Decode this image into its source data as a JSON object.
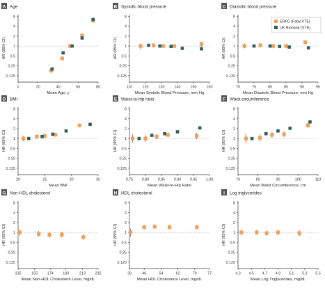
{
  "legend": {
    "items": [
      {
        "label": "ERFC (Fatal VTE)",
        "color": "#f0a05a"
      },
      {
        "label": "UK Biobank (VTE)",
        "color": "#2e5f5c"
      }
    ]
  },
  "colors": {
    "erfc": "#f0a05a",
    "ukb": "#2e5f5c",
    "axis": "#333333",
    "refline": "#999999"
  },
  "y_axis": {
    "label": "HR (95% CI)",
    "ticks": [
      0.125,
      0.25,
      0.5,
      1,
      2,
      4,
      8
    ],
    "tick_labels": [
      "0.125",
      "0.25",
      "0.5",
      "1",
      "2",
      "4",
      "8"
    ]
  },
  "chart_data": [
    {
      "type": "scatter",
      "letter": "A",
      "title": "Age",
      "xlabel": "Mean Age, y",
      "ylabel": "HR (95% CI)",
      "xlim": [
        0,
        80
      ],
      "xticks": [
        0,
        20,
        40,
        60,
        80
      ],
      "xtick_labels": [
        "0",
        "20",
        "40",
        "60",
        "80"
      ],
      "ylim": [
        0.08,
        9
      ],
      "yscale": "log",
      "series": [
        {
          "name": "ERFC (Fatal VTE)",
          "points": [
            {
              "x": 33,
              "y": 0.18,
              "lo": 0.15,
              "hi": 0.21
            },
            {
              "x": 44,
              "y": 0.42,
              "lo": 0.39,
              "hi": 0.46
            },
            {
              "x": 52,
              "y": 1.0,
              "lo": 1.0,
              "hi": 1.0
            },
            {
              "x": 64,
              "y": 2.1,
              "lo": 1.95,
              "hi": 2.25
            },
            {
              "x": 75,
              "y": 5.9,
              "lo": 5.2,
              "hi": 6.7
            }
          ]
        },
        {
          "name": "UK Biobank (VTE)",
          "points": [
            {
              "x": 34,
              "y": 0.2,
              "lo": 0.18,
              "hi": 0.22
            },
            {
              "x": 45,
              "y": 0.62,
              "lo": 0.6,
              "hi": 0.64
            },
            {
              "x": 54,
              "y": 1.0,
              "lo": 1.0,
              "hi": 1.0
            },
            {
              "x": 64,
              "y": 1.75,
              "lo": 1.7,
              "hi": 1.8
            },
            {
              "x": 75,
              "y": 6.4,
              "lo": 6.2,
              "hi": 6.6
            }
          ]
        }
      ]
    },
    {
      "type": "scatter",
      "letter": "B",
      "title": "Systolic blood pressure",
      "xlabel": "Mean Systolic Blood Pressure, mm Hg",
      "ylabel": "HR (95% CI)",
      "xlim": [
        110,
        160
      ],
      "xticks": [
        110,
        120,
        130,
        140,
        150,
        160
      ],
      "xtick_labels": [
        "110",
        "120",
        "130",
        "140",
        "150",
        "160"
      ],
      "ylim": [
        0.08,
        9
      ],
      "yscale": "log",
      "series": [
        {
          "name": "ERFC (Fatal VTE)",
          "points": [
            {
              "x": 117,
              "y": 1.0,
              "lo": 0.8,
              "hi": 1.2
            },
            {
              "x": 125,
              "y": 1.05,
              "lo": 0.9,
              "hi": 1.2
            },
            {
              "x": 131,
              "y": 1.0,
              "lo": 0.88,
              "hi": 1.15
            },
            {
              "x": 138,
              "y": 1.0,
              "lo": 1.0,
              "hi": 1.0
            },
            {
              "x": 155,
              "y": 1.15,
              "lo": 0.95,
              "hi": 1.35
            }
          ]
        },
        {
          "name": "UK Biobank (VTE)",
          "points": [
            {
              "x": 122,
              "y": 1.05,
              "lo": 1.0,
              "hi": 1.1
            },
            {
              "x": 129,
              "y": 1.0,
              "lo": 0.96,
              "hi": 1.04
            },
            {
              "x": 136,
              "y": 0.97,
              "lo": 0.93,
              "hi": 1.01
            },
            {
              "x": 143,
              "y": 0.85,
              "lo": 0.81,
              "hi": 0.89
            },
            {
              "x": 155,
              "y": 0.82,
              "lo": 0.78,
              "hi": 0.86
            }
          ]
        }
      ]
    },
    {
      "type": "scatter",
      "letter": "C",
      "title": "Diastolic blood pressure",
      "xlabel": "Mean Diastolic Blood Pressure, mm Hg",
      "ylabel": "HR (95% CI)",
      "xlim": [
        70,
        95
      ],
      "xticks": [
        70,
        75,
        80,
        85,
        90,
        95
      ],
      "xtick_labels": [
        "70",
        "75",
        "80",
        "85",
        "90",
        "95"
      ],
      "ylim": [
        0.08,
        9
      ],
      "yscale": "log",
      "series": [
        {
          "name": "ERFC (Fatal VTE)",
          "points": [
            {
              "x": 72,
              "y": 1.0,
              "lo": 0.85,
              "hi": 1.2
            },
            {
              "x": 77,
              "y": 1.05,
              "lo": 0.9,
              "hi": 1.2
            },
            {
              "x": 81,
              "y": 1.0,
              "lo": 0.85,
              "hi": 1.15
            },
            {
              "x": 85,
              "y": 1.0,
              "lo": 1.0,
              "hi": 1.0
            },
            {
              "x": 91,
              "y": 1.3,
              "lo": 1.15,
              "hi": 1.45
            }
          ]
        },
        {
          "name": "UK Biobank (VTE)",
          "points": [
            {
              "x": 75,
              "y": 1.0,
              "lo": 0.97,
              "hi": 1.03
            },
            {
              "x": 80,
              "y": 1.0,
              "lo": 0.97,
              "hi": 1.03
            },
            {
              "x": 83,
              "y": 0.97,
              "lo": 0.93,
              "hi": 1.01
            },
            {
              "x": 86,
              "y": 0.93,
              "lo": 0.9,
              "hi": 0.96
            },
            {
              "x": 92,
              "y": 0.88,
              "lo": 0.84,
              "hi": 0.92
            }
          ]
        }
      ]
    },
    {
      "type": "scatter",
      "letter": "D",
      "title": "BMI",
      "xlabel": "Mean BMI",
      "ylabel": "HR (95% CI)",
      "xlim": [
        20,
        35
      ],
      "xticks": [
        20,
        25,
        30,
        35
      ],
      "xtick_labels": [
        "20",
        "25",
        "30",
        "35"
      ],
      "ylim": [
        0.08,
        9
      ],
      "yscale": "log",
      "series": [
        {
          "name": "ERFC (Fatal VTE)",
          "points": [
            {
              "x": 21,
              "y": 1.0,
              "lo": 0.82,
              "hi": 1.2
            },
            {
              "x": 23.5,
              "y": 1.15,
              "lo": 1.0,
              "hi": 1.3
            },
            {
              "x": 25,
              "y": 1.2,
              "lo": 1.05,
              "hi": 1.35
            },
            {
              "x": 27,
              "y": 1.3,
              "lo": 1.15,
              "hi": 1.45
            },
            {
              "x": 31.5,
              "y": 2.5,
              "lo": 2.3,
              "hi": 2.7
            }
          ]
        },
        {
          "name": "UK Biobank (VTE)",
          "points": [
            {
              "x": 22,
              "y": 1.0,
              "lo": 0.97,
              "hi": 1.03
            },
            {
              "x": 24.5,
              "y": 1.15,
              "lo": 1.1,
              "hi": 1.2
            },
            {
              "x": 26.5,
              "y": 1.35,
              "lo": 1.3,
              "hi": 1.4
            },
            {
              "x": 29,
              "y": 1.7,
              "lo": 1.65,
              "hi": 1.75
            },
            {
              "x": 33.5,
              "y": 2.7,
              "lo": 2.6,
              "hi": 2.8
            }
          ]
        }
      ]
    },
    {
      "type": "scatter",
      "letter": "E",
      "title": "Waist-to-hip ratio",
      "xlabel": "Mean Waist-to-Hip Ratio",
      "ylabel": "HR (95% CI)",
      "xlim": [
        0.75,
        1.0
      ],
      "xticks": [
        0.75,
        0.8,
        0.85,
        0.9,
        0.95,
        1.0
      ],
      "xtick_labels": [
        "0.75",
        "0.80",
        "0.85",
        "0.90",
        "0.95",
        "1.00"
      ],
      "ylim": [
        0.08,
        9
      ],
      "yscale": "log",
      "series": [
        {
          "name": "ERFC (Fatal VTE)",
          "points": [
            {
              "x": 0.76,
              "y": 1.0,
              "lo": 0.75,
              "hi": 1.35
            },
            {
              "x": 0.8,
              "y": 1.0,
              "lo": 0.8,
              "hi": 1.25
            },
            {
              "x": 0.835,
              "y": 1.15,
              "lo": 0.95,
              "hi": 1.4
            },
            {
              "x": 0.87,
              "y": 1.3,
              "lo": 1.1,
              "hi": 1.5
            },
            {
              "x": 0.96,
              "y": 1.2,
              "lo": 0.95,
              "hi": 1.5
            }
          ]
        },
        {
          "name": "UK Biobank (VTE)",
          "points": [
            {
              "x": 0.78,
              "y": 1.0,
              "lo": 0.96,
              "hi": 1.04
            },
            {
              "x": 0.82,
              "y": 1.25,
              "lo": 1.2,
              "hi": 1.3
            },
            {
              "x": 0.86,
              "y": 1.4,
              "lo": 1.35,
              "hi": 1.45
            },
            {
              "x": 0.9,
              "y": 1.6,
              "lo": 1.55,
              "hi": 1.65
            },
            {
              "x": 0.97,
              "y": 2.1,
              "lo": 2.0,
              "hi": 2.2
            }
          ]
        }
      ]
    },
    {
      "type": "scatter",
      "letter": "F",
      "title": "Waist circumference",
      "xlabel": "Mean Waist Circumference, cm",
      "ylabel": "HR (95% CI)",
      "xlim": [
        70,
        110
      ],
      "xticks": [
        70,
        80,
        90,
        100,
        110
      ],
      "xtick_labels": [
        "70",
        "80",
        "90",
        "100",
        "110"
      ],
      "ylim": [
        0.08,
        9
      ],
      "yscale": "log",
      "series": [
        {
          "name": "ERFC (Fatal VTE)",
          "points": [
            {
              "x": 74,
              "y": 1.0,
              "lo": 0.7,
              "hi": 1.4
            },
            {
              "x": 81,
              "y": 1.05,
              "lo": 0.8,
              "hi": 1.35
            },
            {
              "x": 87,
              "y": 1.3,
              "lo": 1.05,
              "hi": 1.6
            },
            {
              "x": 93,
              "y": 1.35,
              "lo": 1.1,
              "hi": 1.65
            },
            {
              "x": 105,
              "y": 2.5,
              "lo": 2.1,
              "hi": 3.0
            }
          ]
        },
        {
          "name": "UK Biobank (VTE)",
          "points": [
            {
              "x": 77,
              "y": 1.0,
              "lo": 0.96,
              "hi": 1.04
            },
            {
              "x": 84,
              "y": 1.4,
              "lo": 1.35,
              "hi": 1.45
            },
            {
              "x": 90,
              "y": 1.7,
              "lo": 1.64,
              "hi": 1.76
            },
            {
              "x": 96,
              "y": 2.05,
              "lo": 1.98,
              "hi": 2.12
            },
            {
              "x": 106,
              "y": 3.2,
              "lo": 3.08,
              "hi": 3.32
            }
          ]
        }
      ]
    },
    {
      "type": "scatter",
      "letter": "G",
      "title": "Non-HDL cholesterol",
      "xlabel": "Mean Non-HDL Cholesterol Level, mg/dL",
      "ylabel": "HR (95% CI)",
      "xlim": [
        135,
        232
      ],
      "xticks": [
        135,
        155,
        174,
        193,
        213,
        232
      ],
      "xtick_labels": [
        "135",
        "155",
        "174",
        "193",
        "213",
        "232"
      ],
      "ylim": [
        0.08,
        9
      ],
      "yscale": "log",
      "series": [
        {
          "name": "ERFC (Fatal VTE)",
          "points": [
            {
              "x": 137,
              "y": 1.0,
              "lo": 0.8,
              "hi": 1.25
            },
            {
              "x": 160,
              "y": 0.9,
              "lo": 0.75,
              "hi": 1.1
            },
            {
              "x": 173,
              "y": 0.85,
              "lo": 0.7,
              "hi": 1.05
            },
            {
              "x": 188,
              "y": 0.85,
              "lo": 0.7,
              "hi": 1.05
            },
            {
              "x": 214,
              "y": 0.72,
              "lo": 0.6,
              "hi": 0.88
            }
          ]
        }
      ]
    },
    {
      "type": "scatter",
      "letter": "H",
      "title": "HDL cholesterol",
      "xlabel": "Mean HDL Cholesterol Level, mg/dL",
      "ylabel": "HR (95% CI)",
      "xlim": [
        39,
        77
      ],
      "xticks": [
        39,
        46,
        54,
        62,
        70,
        77
      ],
      "xtick_labels": [
        "39",
        "46",
        "54",
        "62",
        "70",
        "77"
      ],
      "ylim": [
        0.08,
        9
      ],
      "yscale": "log",
      "series": [
        {
          "name": "ERFC (Fatal VTE)",
          "points": [
            {
              "x": 39.5,
              "y": 1.0,
              "lo": 0.75,
              "hi": 1.3
            },
            {
              "x": 46,
              "y": 1.45,
              "lo": 1.25,
              "hi": 1.7
            },
            {
              "x": 51,
              "y": 1.5,
              "lo": 1.3,
              "hi": 1.75
            },
            {
              "x": 58,
              "y": 1.45,
              "lo": 1.25,
              "hi": 1.7
            },
            {
              "x": 71,
              "y": 1.45,
              "lo": 1.25,
              "hi": 1.7
            }
          ]
        }
      ]
    },
    {
      "type": "scatter",
      "letter": "I",
      "title": "Log triglycerides",
      "xlabel": "Mean Log Triglycerides, mg/dL",
      "ylabel": "HR (95% CI)",
      "xlim": [
        4.3,
        5.5
      ],
      "xticks": [
        4.3,
        4.5,
        4.7,
        4.9,
        5.1,
        5.3,
        5.5
      ],
      "xtick_labels": [
        "4.3",
        "4.5",
        "4.7",
        "4.9",
        "5.1",
        "5.3",
        "5.5"
      ],
      "ylim": [
        0.08,
        9
      ],
      "yscale": "log",
      "series": [
        {
          "name": "ERFC (Fatal VTE)",
          "points": [
            {
              "x": 4.35,
              "y": 1.0,
              "lo": 0.82,
              "hi": 1.2
            },
            {
              "x": 4.58,
              "y": 1.0,
              "lo": 0.85,
              "hi": 1.2
            },
            {
              "x": 4.73,
              "y": 0.95,
              "lo": 0.8,
              "hi": 1.12
            },
            {
              "x": 4.9,
              "y": 1.0,
              "lo": 0.85,
              "hi": 1.2
            },
            {
              "x": 5.22,
              "y": 0.95,
              "lo": 0.78,
              "hi": 1.15
            }
          ]
        }
      ]
    }
  ]
}
